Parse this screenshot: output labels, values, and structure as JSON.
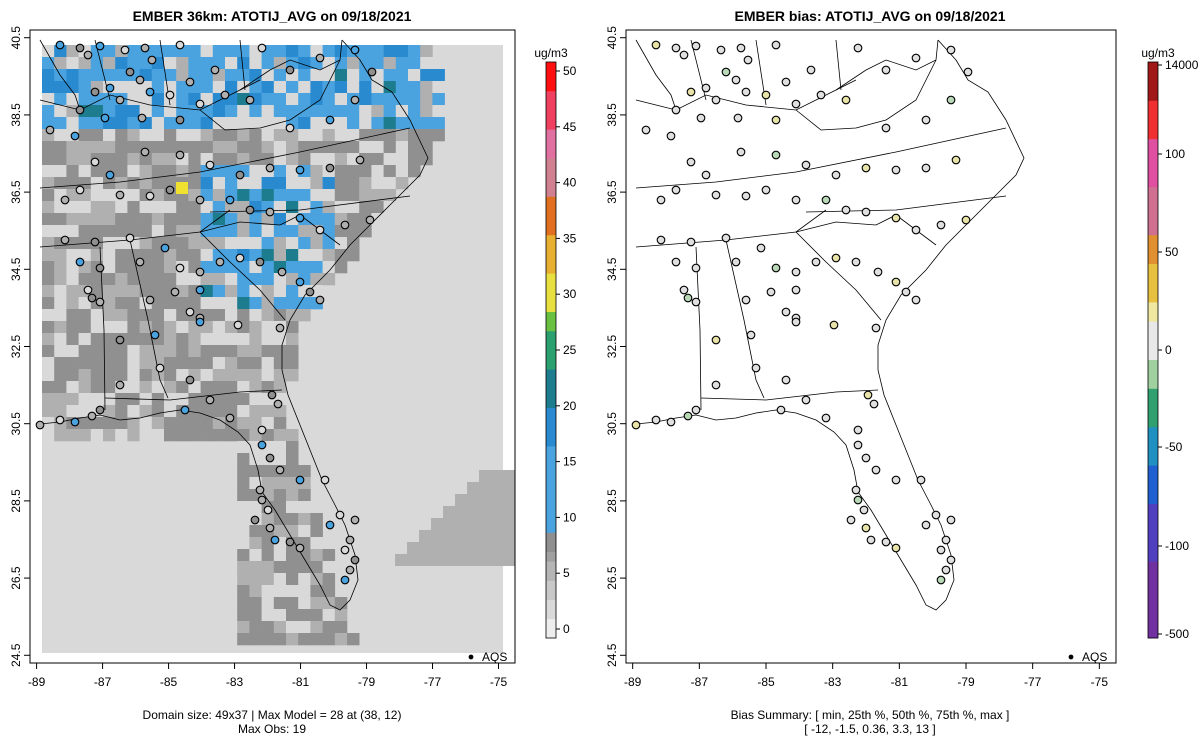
{
  "left_panel": {
    "title": "EMBER 36km: ATOTIJ_AVG on 09/18/2021",
    "footer_line1": "Domain size: 49x37 | Max Model = 28 at (38, 12)",
    "footer_line2": "Max Obs: 19",
    "legend_label": "AQS",
    "colorbar_unit": "ug/m3",
    "colorbar_ticks": [
      "0",
      "5",
      "10",
      "15",
      "20",
      "25",
      "30",
      "35",
      "40",
      "45",
      "50"
    ]
  },
  "right_panel": {
    "title": "EMBER bias: ATOTIJ_AVG on 09/18/2021",
    "footer_line1": "Bias Summary: [ min, 25th %, 50th %, 75th %, max ]",
    "footer_line2": "[ -12,   -1.5,   0.36,   3.3,   13 ]",
    "legend_label": "AQS",
    "colorbar_unit": "ug/m3",
    "colorbar_ticks": [
      "-500",
      "-100",
      "-50",
      "0",
      "50",
      "100",
      "14000"
    ]
  },
  "axes": {
    "x_ticks": [
      "-89",
      "-87",
      "-85",
      "-83",
      "-81",
      "-79",
      "-77",
      "-75"
    ],
    "y_ticks": [
      "24.5",
      "26.5",
      "28.5",
      "30.5",
      "32.5",
      "34.5",
      "36.5",
      "38.5",
      "40.5"
    ]
  },
  "colors": {
    "land_gray": "#d9d9d9",
    "mid_gray": "#b0b0b0",
    "dark_gray": "#909090",
    "light_blue": "#4aa3df",
    "mid_blue": "#2a8ad0",
    "teal": "#1d7d8f",
    "yellow": "#f0e030",
    "bias_neutral": "#e0e0e0",
    "bias_pos": "#e8e3a8",
    "bias_neg": "#b8d8b8"
  }
}
